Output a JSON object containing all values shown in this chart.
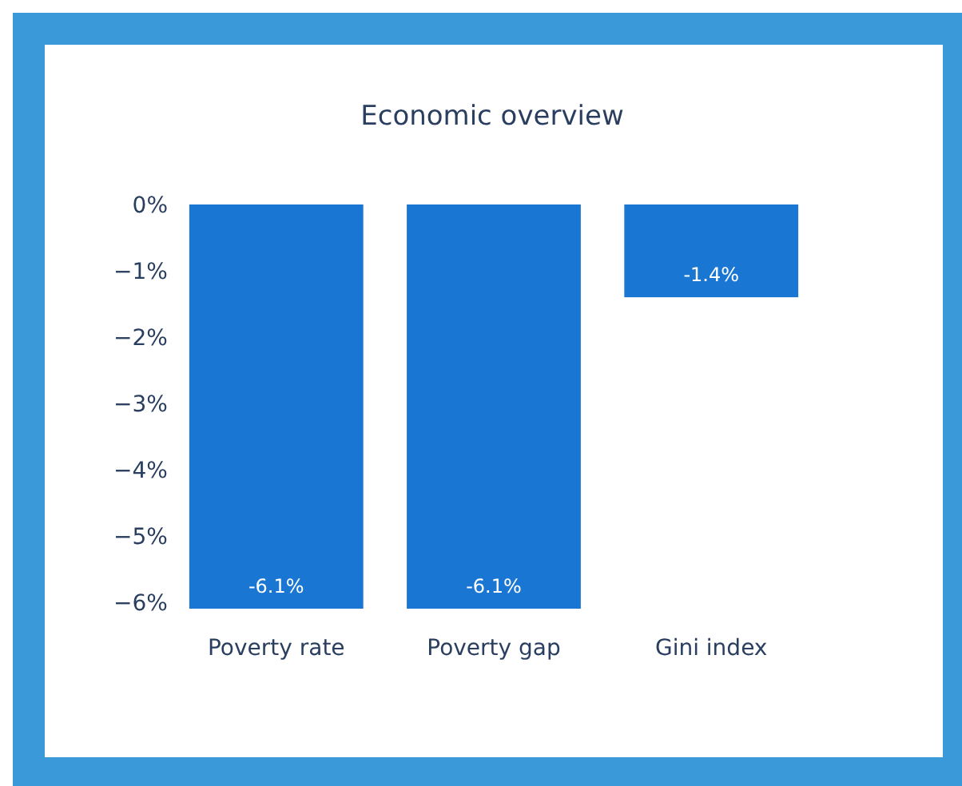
{
  "chart_data": {
    "type": "bar",
    "title": "Economic overview",
    "categories": [
      "Poverty rate",
      "Poverty gap",
      "Gini index"
    ],
    "values": [
      -6.1,
      -6.1,
      -1.4
    ],
    "color": "#1976d2",
    "value_labels": [
      "-6.1%",
      "-6.1%",
      "-1.4%"
    ],
    "ylim": [
      -6.1,
      0
    ],
    "yticks": [
      {
        "value": 0,
        "label": "0%"
      },
      {
        "value": -1,
        "label": "−1%"
      },
      {
        "value": -2,
        "label": "−2%"
      },
      {
        "value": -3,
        "label": "−3%"
      },
      {
        "value": -4,
        "label": "−4%"
      },
      {
        "value": -5,
        "label": "−5%"
      },
      {
        "value": -6,
        "label": "−6%"
      }
    ],
    "grid": false
  }
}
